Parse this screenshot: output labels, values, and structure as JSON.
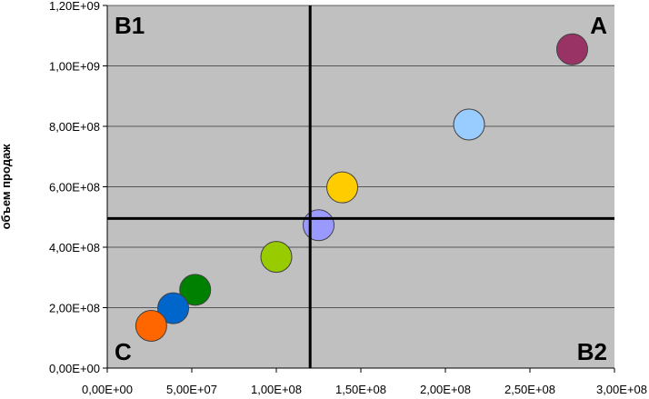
{
  "chart_data": {
    "type": "scatter",
    "title": "",
    "xlabel": "",
    "ylabel": "объем продаж",
    "xlim": [
      0,
      300000000
    ],
    "ylim": [
      0,
      1200000000
    ],
    "x_ticks": [
      {
        "value": 0,
        "label": "0,00E+00"
      },
      {
        "value": 50000000,
        "label": "5,00E+07"
      },
      {
        "value": 100000000,
        "label": "1,00E+08"
      },
      {
        "value": 150000000,
        "label": "1,50E+08"
      },
      {
        "value": 200000000,
        "label": "2,00E+08"
      },
      {
        "value": 250000000,
        "label": "2,50E+08"
      },
      {
        "value": 300000000,
        "label": "3,00E+08"
      }
    ],
    "y_ticks": [
      {
        "value": 0,
        "label": "0,00E+00"
      },
      {
        "value": 200000000,
        "label": "2,00E+08"
      },
      {
        "value": 400000000,
        "label": "4,00E+08"
      },
      {
        "value": 600000000,
        "label": "6,00E+08"
      },
      {
        "value": 800000000,
        "label": "8,00E+08"
      },
      {
        "value": 1000000000,
        "label": "1,00E+09"
      },
      {
        "value": 1200000000,
        "label": "1,20E+09"
      }
    ],
    "grid": {
      "horizontal": true,
      "vertical": false
    },
    "points": [
      {
        "x": 275000000,
        "y": 1055000000,
        "color": "#993366"
      },
      {
        "x": 214000000,
        "y": 806000000,
        "color": "#99ccff"
      },
      {
        "x": 139000000,
        "y": 598000000,
        "color": "#ffcc00"
      },
      {
        "x": 125000000,
        "y": 473000000,
        "color": "#9999ff"
      },
      {
        "x": 100000000,
        "y": 368000000,
        "color": "#99cc00"
      },
      {
        "x": 52000000,
        "y": 259000000,
        "color": "#008000"
      },
      {
        "x": 39000000,
        "y": 198000000,
        "color": "#0066cc"
      },
      {
        "x": 26000000,
        "y": 140000000,
        "color": "#ff6600"
      }
    ],
    "reference_lines": {
      "x": 120000000,
      "y": 495000000
    },
    "quadrant_labels": {
      "top_left": "B1",
      "top_right": "A",
      "bottom_left": "C",
      "bottom_right": "B2"
    },
    "colors": {
      "plot_background": "#c0c0c0",
      "gridline": "#000000",
      "reference_line": "#000000"
    }
  }
}
